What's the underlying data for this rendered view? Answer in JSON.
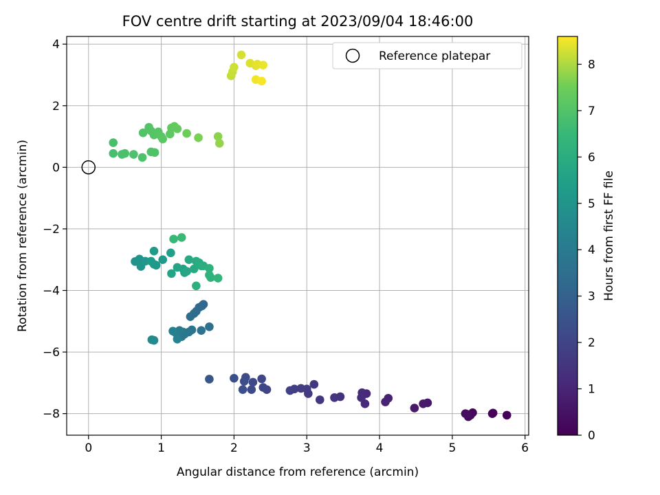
{
  "chart_data": {
    "type": "scatter",
    "title": "FOV centre drift starting at 2023/09/04 18:46:00",
    "xlabel": "Angular distance from reference (arcmin)",
    "ylabel": "Rotation from reference (arcmin)",
    "xlim": [
      -0.3,
      6.05
    ],
    "ylim": [
      -8.7,
      4.25
    ],
    "xticks": [
      0,
      1,
      2,
      3,
      4,
      5,
      6
    ],
    "yticks": [
      -8,
      -6,
      -4,
      -2,
      0,
      2,
      4
    ],
    "grid": true,
    "colormap": "viridis",
    "colorbar": {
      "label": "Hours from first FF file",
      "range": [
        0,
        8.6
      ],
      "ticks": [
        0,
        1,
        2,
        3,
        4,
        5,
        6,
        7,
        8
      ]
    },
    "reference": {
      "label": "Reference platepar",
      "x": 0,
      "y": 0
    },
    "legend": {
      "position": "top-right",
      "entries": [
        "Reference platepar"
      ]
    },
    "points": [
      {
        "x": 5.75,
        "y": -8.05,
        "h": 0.05
      },
      {
        "x": 5.55,
        "y": -8.0,
        "h": 0.1
      },
      {
        "x": 5.56,
        "y": -7.98,
        "h": 0.12
      },
      {
        "x": 5.28,
        "y": -7.97,
        "h": 0.15
      },
      {
        "x": 5.25,
        "y": -8.05,
        "h": 0.2
      },
      {
        "x": 5.22,
        "y": -8.1,
        "h": 0.25
      },
      {
        "x": 5.18,
        "y": -8.0,
        "h": 0.3
      },
      {
        "x": 5.2,
        "y": -8.02,
        "h": 0.35
      },
      {
        "x": 4.66,
        "y": -7.65,
        "h": 0.6
      },
      {
        "x": 4.6,
        "y": -7.68,
        "h": 0.65
      },
      {
        "x": 4.48,
        "y": -7.82,
        "h": 0.7
      },
      {
        "x": 4.12,
        "y": -7.5,
        "h": 0.9
      },
      {
        "x": 4.08,
        "y": -7.62,
        "h": 0.95
      },
      {
        "x": 3.82,
        "y": -7.35,
        "h": 1.1
      },
      {
        "x": 3.8,
        "y": -7.68,
        "h": 1.15
      },
      {
        "x": 3.76,
        "y": -7.32,
        "h": 1.2
      },
      {
        "x": 3.75,
        "y": -7.48,
        "h": 1.25
      },
      {
        "x": 3.46,
        "y": -7.45,
        "h": 1.4
      },
      {
        "x": 3.38,
        "y": -7.48,
        "h": 1.45
      },
      {
        "x": 3.18,
        "y": -7.55,
        "h": 1.55
      },
      {
        "x": 3.1,
        "y": -7.05,
        "h": 1.6
      },
      {
        "x": 3.02,
        "y": -7.35,
        "h": 1.65
      },
      {
        "x": 3.0,
        "y": -7.2,
        "h": 1.7
      },
      {
        "x": 2.92,
        "y": -7.18,
        "h": 1.75
      },
      {
        "x": 2.83,
        "y": -7.2,
        "h": 1.8
      },
      {
        "x": 2.77,
        "y": -7.25,
        "h": 1.85
      },
      {
        "x": 2.45,
        "y": -7.22,
        "h": 2.0
      },
      {
        "x": 2.4,
        "y": -7.15,
        "h": 2.05
      },
      {
        "x": 2.38,
        "y": -6.87,
        "h": 2.1
      },
      {
        "x": 2.26,
        "y": -6.98,
        "h": 2.15
      },
      {
        "x": 2.24,
        "y": -7.22,
        "h": 2.2
      },
      {
        "x": 2.16,
        "y": -6.82,
        "h": 2.25
      },
      {
        "x": 2.14,
        "y": -6.95,
        "h": 2.3
      },
      {
        "x": 2.12,
        "y": -7.22,
        "h": 2.35
      },
      {
        "x": 2.0,
        "y": -6.85,
        "h": 2.4
      },
      {
        "x": 1.66,
        "y": -6.88,
        "h": 2.6
      },
      {
        "x": 1.58,
        "y": -4.45,
        "h": 3.2
      },
      {
        "x": 1.56,
        "y": -4.5,
        "h": 3.25
      },
      {
        "x": 1.52,
        "y": -4.55,
        "h": 3.3
      },
      {
        "x": 1.48,
        "y": -4.68,
        "h": 3.35
      },
      {
        "x": 1.45,
        "y": -4.75,
        "h": 3.4
      },
      {
        "x": 1.4,
        "y": -4.85,
        "h": 3.45
      },
      {
        "x": 1.66,
        "y": -5.18,
        "h": 3.6
      },
      {
        "x": 1.55,
        "y": -5.3,
        "h": 3.65
      },
      {
        "x": 1.42,
        "y": -5.28,
        "h": 3.7
      },
      {
        "x": 1.38,
        "y": -5.35,
        "h": 3.75
      },
      {
        "x": 1.32,
        "y": -5.42,
        "h": 3.8
      },
      {
        "x": 1.28,
        "y": -5.5,
        "h": 3.85
      },
      {
        "x": 1.3,
        "y": -5.35,
        "h": 3.9
      },
      {
        "x": 1.25,
        "y": -5.3,
        "h": 4.0
      },
      {
        "x": 1.2,
        "y": -5.38,
        "h": 4.1
      },
      {
        "x": 1.16,
        "y": -5.32,
        "h": 4.2
      },
      {
        "x": 1.22,
        "y": -5.58,
        "h": 4.3
      },
      {
        "x": 0.9,
        "y": -5.62,
        "h": 4.6
      },
      {
        "x": 0.87,
        "y": -5.6,
        "h": 4.65
      },
      {
        "x": 0.64,
        "y": -3.06,
        "h": 4.9
      },
      {
        "x": 0.7,
        "y": -2.98,
        "h": 4.95
      },
      {
        "x": 0.72,
        "y": -3.22,
        "h": 5.0
      },
      {
        "x": 0.78,
        "y": -3.05,
        "h": 5.05
      },
      {
        "x": 0.9,
        "y": -3.15,
        "h": 5.1
      },
      {
        "x": 0.93,
        "y": -3.18,
        "h": 5.15
      },
      {
        "x": 1.02,
        "y": -3.0,
        "h": 5.2
      },
      {
        "x": 0.9,
        "y": -2.72,
        "h": 5.25
      },
      {
        "x": 0.86,
        "y": -3.05,
        "h": 5.3
      },
      {
        "x": 1.13,
        "y": -2.78,
        "h": 5.4
      },
      {
        "x": 1.3,
        "y": -3.3,
        "h": 5.5
      },
      {
        "x": 1.32,
        "y": -3.42,
        "h": 5.55
      },
      {
        "x": 1.14,
        "y": -3.45,
        "h": 5.6
      },
      {
        "x": 1.22,
        "y": -3.25,
        "h": 5.65
      },
      {
        "x": 1.35,
        "y": -3.38,
        "h": 5.7
      },
      {
        "x": 1.38,
        "y": -3.0,
        "h": 5.8
      },
      {
        "x": 1.45,
        "y": -3.3,
        "h": 5.85
      },
      {
        "x": 1.48,
        "y": -3.05,
        "h": 5.9
      },
      {
        "x": 1.52,
        "y": -3.1,
        "h": 5.95
      },
      {
        "x": 1.55,
        "y": -3.2,
        "h": 6.0
      },
      {
        "x": 1.58,
        "y": -3.2,
        "h": 6.05
      },
      {
        "x": 1.48,
        "y": -3.85,
        "h": 6.1
      },
      {
        "x": 1.66,
        "y": -3.28,
        "h": 6.15
      },
      {
        "x": 1.66,
        "y": -3.5,
        "h": 6.2
      },
      {
        "x": 1.68,
        "y": -3.58,
        "h": 6.25
      },
      {
        "x": 1.78,
        "y": -3.6,
        "h": 6.3
      },
      {
        "x": 1.17,
        "y": -2.33,
        "h": 6.5
      },
      {
        "x": 1.28,
        "y": -2.28,
        "h": 6.55
      },
      {
        "x": 0.34,
        "y": 0.45,
        "h": 6.8
      },
      {
        "x": 0.34,
        "y": 0.8,
        "h": 6.82
      },
      {
        "x": 0.46,
        "y": 0.42,
        "h": 6.85
      },
      {
        "x": 0.5,
        "y": 0.45,
        "h": 6.87
      },
      {
        "x": 0.62,
        "y": 0.42,
        "h": 6.9
      },
      {
        "x": 0.74,
        "y": 0.32,
        "h": 6.92
      },
      {
        "x": 0.86,
        "y": 0.5,
        "h": 6.95
      },
      {
        "x": 0.91,
        "y": 0.48,
        "h": 6.97
      },
      {
        "x": 0.75,
        "y": 1.12,
        "h": 7.0
      },
      {
        "x": 0.83,
        "y": 1.3,
        "h": 7.02
      },
      {
        "x": 0.86,
        "y": 1.18,
        "h": 7.05
      },
      {
        "x": 0.9,
        "y": 1.05,
        "h": 7.08
      },
      {
        "x": 0.96,
        "y": 1.15,
        "h": 7.1
      },
      {
        "x": 1.0,
        "y": 1.0,
        "h": 7.12
      },
      {
        "x": 1.02,
        "y": 0.92,
        "h": 7.15
      },
      {
        "x": 1.12,
        "y": 1.08,
        "h": 7.2
      },
      {
        "x": 1.14,
        "y": 1.28,
        "h": 7.25
      },
      {
        "x": 1.18,
        "y": 1.33,
        "h": 7.3
      },
      {
        "x": 1.22,
        "y": 1.25,
        "h": 7.35
      },
      {
        "x": 1.35,
        "y": 1.1,
        "h": 7.5
      },
      {
        "x": 1.51,
        "y": 0.96,
        "h": 7.6
      },
      {
        "x": 1.78,
        "y": 1.0,
        "h": 7.75
      },
      {
        "x": 1.8,
        "y": 0.78,
        "h": 7.8
      },
      {
        "x": 1.96,
        "y": 2.97,
        "h": 8.15
      },
      {
        "x": 1.98,
        "y": 3.1,
        "h": 8.2
      },
      {
        "x": 2.0,
        "y": 3.25,
        "h": 8.25
      },
      {
        "x": 2.1,
        "y": 3.65,
        "h": 8.3
      },
      {
        "x": 2.22,
        "y": 3.38,
        "h": 8.35
      },
      {
        "x": 2.3,
        "y": 3.3,
        "h": 8.4
      },
      {
        "x": 2.32,
        "y": 3.35,
        "h": 8.42
      },
      {
        "x": 2.4,
        "y": 3.32,
        "h": 8.45
      },
      {
        "x": 2.3,
        "y": 2.85,
        "h": 8.5
      },
      {
        "x": 2.38,
        "y": 2.8,
        "h": 8.55
      }
    ]
  }
}
